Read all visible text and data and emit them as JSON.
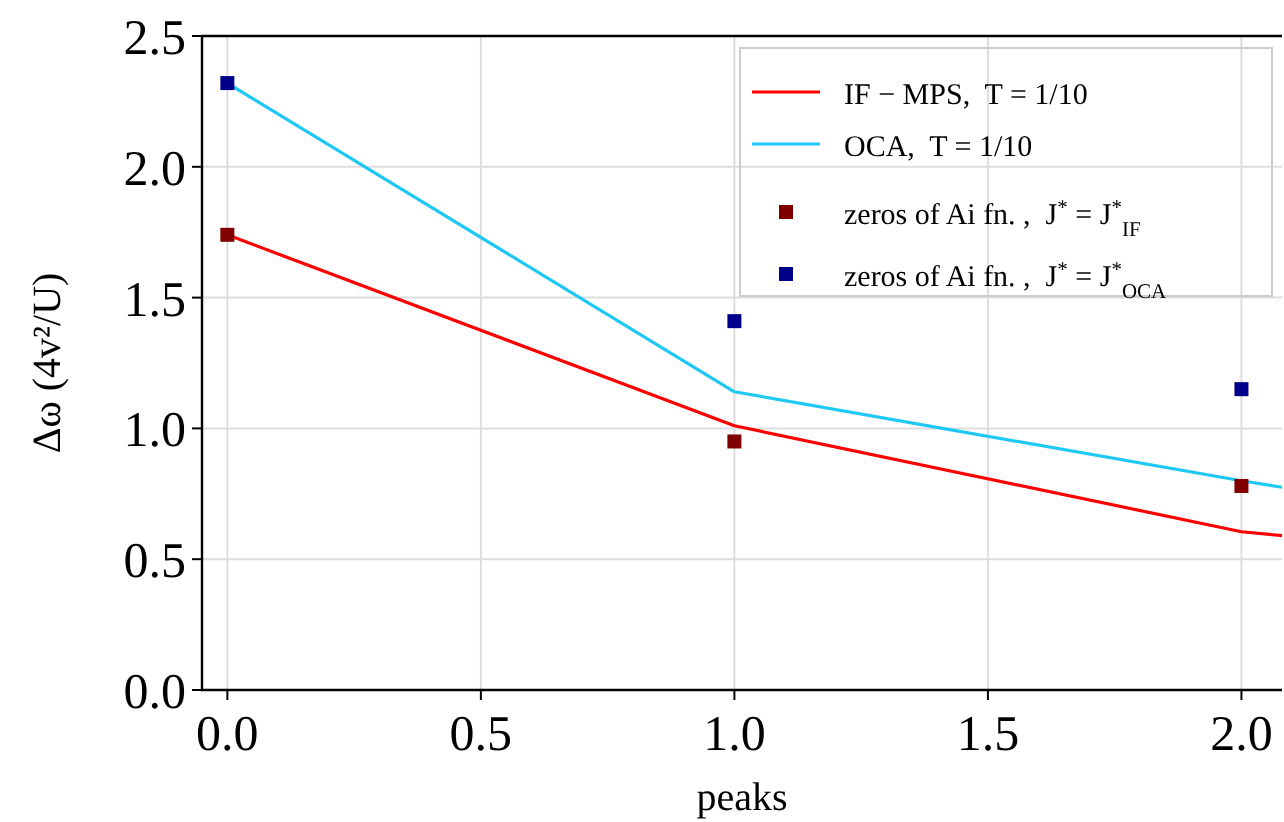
{
  "chart_data": {
    "type": "line",
    "xlabel": "peaks",
    "ylabel": "Δω (4v²/U)",
    "xlim": [
      -0.05,
      2.08
    ],
    "ylim": [
      0,
      2.5
    ],
    "xticks": [
      {
        "value": 0,
        "label": "0.0"
      },
      {
        "value": 0.5,
        "label": "0.5"
      },
      {
        "value": 1,
        "label": "1.0"
      },
      {
        "value": 1.5,
        "label": "1.5"
      },
      {
        "value": 2,
        "label": "2.0"
      }
    ],
    "yticks": [
      {
        "value": 0,
        "label": "0.0"
      },
      {
        "value": 0.5,
        "label": "0.5"
      },
      {
        "value": 1,
        "label": "1.0"
      },
      {
        "value": 1.5,
        "label": "1.5"
      },
      {
        "value": 2,
        "label": "2.0"
      },
      {
        "value": 2.5,
        "label": "2.5"
      }
    ],
    "grid": true,
    "legend": "top right",
    "line_style": "solid",
    "series": [
      {
        "name": "IF − MPS,  T = 1/10",
        "color": "#ff0000",
        "x": [
          0,
          1,
          2,
          2.08
        ],
        "values": [
          1.74,
          1.01,
          0.605,
          0.59
        ]
      },
      {
        "name": "OCA,  T = 1/10",
        "color": "#1ec8f5",
        "x": [
          0,
          1,
          2,
          2.08
        ],
        "values": [
          2.32,
          1.14,
          0.8,
          0.775
        ]
      },
      {
        "type": "scatter",
        "name": "zeros of Ai fn. ,  J$^{*}$ = J$^{*}$$_{IF}$",
        "color": "#800000",
        "marker": "square",
        "x": [
          0,
          1,
          2
        ],
        "values": [
          1.74,
          0.95,
          0.78
        ]
      },
      {
        "type": "scatter",
        "name": "zeros of Ai fn. ,  J$^{*}$ = J$^{*}$$_{OCA}$",
        "color": "#00008b",
        "marker": "square",
        "x": [
          0,
          1,
          2
        ],
        "values": [
          2.32,
          1.41,
          1.15
        ]
      }
    ]
  }
}
